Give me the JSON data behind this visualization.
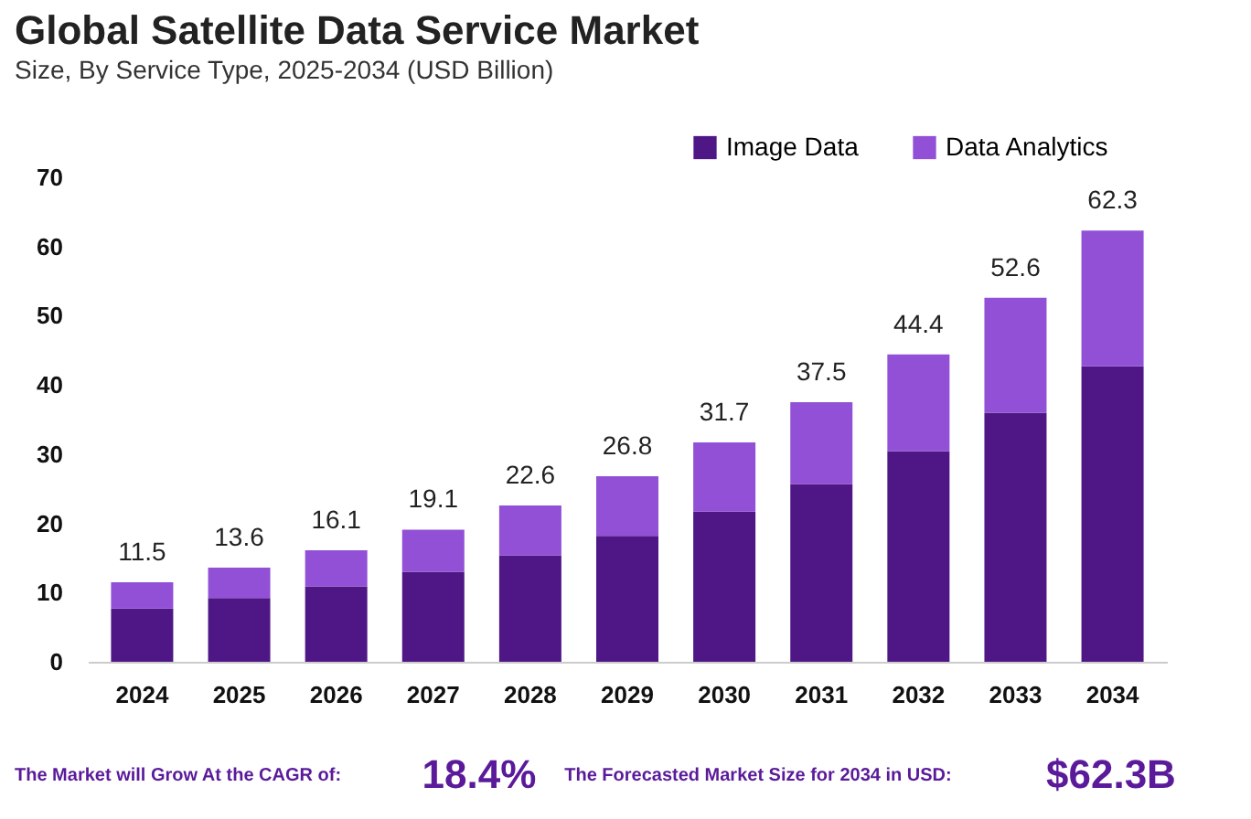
{
  "chart_data": {
    "type": "bar",
    "title": "Global Satellite Data Service Market",
    "subtitle": "Size, By Service Type, 2025-2034 (USD Billion)",
    "categories": [
      "2024",
      "2025",
      "2026",
      "2027",
      "2028",
      "2029",
      "2030",
      "2031",
      "2032",
      "2033",
      "2034"
    ],
    "series": [
      {
        "name": "Image Data",
        "color": "#4f1785",
        "values": [
          7.7,
          9.2,
          10.9,
          13.0,
          15.4,
          18.2,
          21.7,
          25.7,
          30.4,
          36.0,
          42.7
        ]
      },
      {
        "name": "Data Analytics",
        "color": "#9150d6",
        "values": [
          3.8,
          4.4,
          5.2,
          6.1,
          7.2,
          8.6,
          10.0,
          11.8,
          14.0,
          16.6,
          19.6
        ]
      }
    ],
    "stacked": true,
    "totals": [
      "11.5",
      "13.6",
      "16.1",
      "19.1",
      "22.6",
      "26.8",
      "31.7",
      "37.5",
      "44.4",
      "52.6",
      "62.3"
    ],
    "ylim": [
      0,
      70
    ],
    "yticks": [
      0,
      10,
      20,
      30,
      40,
      50,
      60,
      70
    ],
    "grid": false,
    "legend": "top right",
    "annotations": [
      "The Market will Grow At the CAGR of:",
      "18.4%",
      "The Forecasted Market Size for 2034 in USD:",
      "$62.3B"
    ]
  }
}
